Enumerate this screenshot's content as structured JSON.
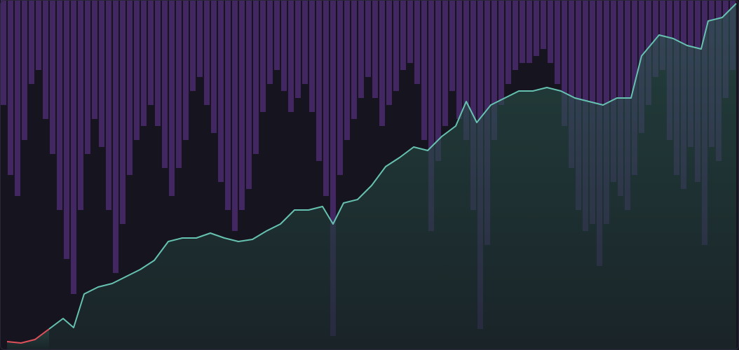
{
  "chart_data": {
    "type": "line",
    "xlim": [
      0,
      1054
    ],
    "ylim": [
      0,
      100
    ],
    "x": [
      10,
      30,
      50,
      70,
      90,
      105,
      120,
      140,
      160,
      180,
      200,
      220,
      240,
      260,
      280,
      300,
      320,
      340,
      360,
      380,
      400,
      420,
      440,
      460,
      475,
      490,
      510,
      530,
      550,
      570,
      590,
      610,
      630,
      650,
      665,
      680,
      700,
      720,
      740,
      760,
      780,
      800,
      820,
      840,
      860,
      880,
      900,
      915,
      940,
      960,
      980,
      1000,
      1010,
      1030,
      1050
    ],
    "series": [
      {
        "color": "#e0505a",
        "values": [
          2.4,
          2,
          3,
          6,
          null,
          null,
          null,
          null,
          null,
          null,
          null,
          null,
          null,
          null,
          null,
          null,
          null,
          null,
          null,
          null,
          null,
          null,
          null,
          null,
          null,
          null,
          null,
          null,
          null,
          null,
          null,
          null,
          null,
          null,
          null,
          null,
          null,
          null,
          null,
          null,
          null,
          null,
          null,
          null,
          null,
          null,
          null,
          null,
          null,
          null,
          null,
          null,
          null,
          null,
          null
        ]
      },
      {
        "color": "#66c2b0",
        "values": [
          null,
          null,
          null,
          6,
          9,
          6.4,
          16,
          18,
          19,
          21,
          23,
          25.6,
          31,
          32,
          32,
          33.4,
          32,
          31,
          31.6,
          34,
          36,
          40,
          40,
          41,
          36,
          42,
          43,
          47,
          52.4,
          55,
          58,
          57,
          61,
          64,
          71,
          65,
          70,
          72,
          74,
          74,
          75,
          74,
          72,
          71,
          70,
          72,
          72,
          84,
          90,
          89,
          87,
          86,
          94,
          95,
          99
        ]
      }
    ],
    "drawdown": {
      "color": "#4b2a70",
      "y2lim": [
        -100,
        0
      ],
      "x": [
        5,
        15,
        25,
        35,
        45,
        55,
        65,
        75,
        85,
        95,
        105,
        115,
        125,
        135,
        145,
        155,
        165,
        175,
        185,
        195,
        205,
        215,
        225,
        235,
        245,
        255,
        265,
        275,
        285,
        295,
        305,
        315,
        325,
        335,
        345,
        355,
        365,
        375,
        385,
        395,
        405,
        415,
        425,
        435,
        445,
        455,
        465,
        475,
        485,
        495,
        505,
        515,
        525,
        535,
        545,
        555,
        565,
        575,
        585,
        595,
        605,
        615,
        625,
        635,
        645,
        655,
        665,
        675,
        685,
        695,
        705,
        715,
        725,
        735,
        745,
        755,
        765,
        775,
        785,
        795,
        805,
        815,
        825,
        835,
        845,
        855,
        865,
        875,
        885,
        895,
        905,
        915,
        925,
        935,
        945,
        955,
        965,
        975,
        985,
        995,
        1005,
        1015,
        1025,
        1035,
        1045
      ],
      "values": [
        -30,
        -50,
        -56,
        -40,
        -24,
        -20,
        -34,
        -44,
        -60,
        -74,
        -84,
        -60,
        -44,
        -34,
        -42,
        -60,
        -78,
        -64,
        -50,
        -40,
        -36,
        -30,
        -36,
        -48,
        -56,
        -48,
        -40,
        -26,
        -22,
        -30,
        -38,
        -52,
        -60,
        -66,
        -60,
        -54,
        -44,
        -32,
        -24,
        -20,
        -26,
        -32,
        -28,
        -24,
        -32,
        -46,
        -56,
        -96,
        -50,
        -40,
        -34,
        -28,
        -22,
        -28,
        -36,
        -30,
        -26,
        -20,
        -18,
        -24,
        -40,
        -66,
        -46,
        -36,
        -26,
        -34,
        -40,
        -60,
        -94,
        -70,
        -40,
        -30,
        -24,
        -20,
        -18,
        -18,
        -16,
        -14,
        -18,
        -24,
        -36,
        -48,
        -60,
        -66,
        -64,
        -76,
        -64,
        -52,
        -56,
        -60,
        -50,
        -38,
        -30,
        -22,
        -20,
        -40,
        -50,
        -54,
        -42,
        -52,
        -70,
        -42,
        -46,
        -28,
        -20
      ]
    }
  }
}
